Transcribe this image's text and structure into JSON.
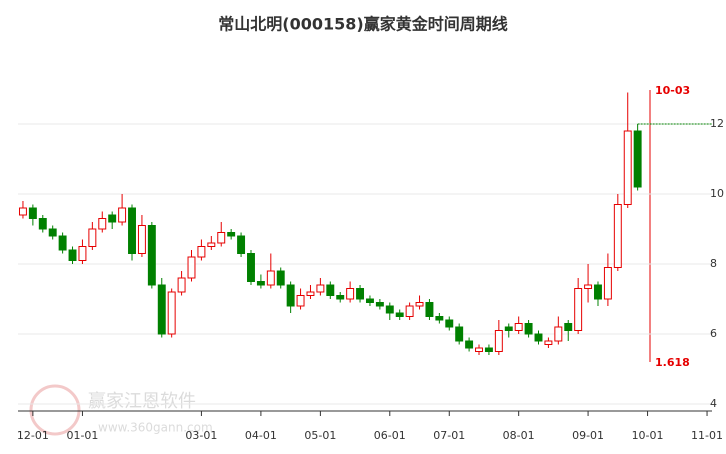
{
  "chart_data": {
    "type": "candlestick",
    "title": "常山北明(000158)赢家黄金时间周期线",
    "categories": [
      null,
      "12-01",
      null,
      null,
      null,
      null,
      "01-01",
      null,
      null,
      null,
      null,
      null,
      null,
      null,
      null,
      null,
      null,
      null,
      "03-01",
      null,
      null,
      null,
      null,
      null,
      "04-01",
      null,
      null,
      null,
      null,
      null,
      "05-01",
      null,
      null,
      null,
      null,
      null,
      null,
      "06-01",
      null,
      null,
      null,
      null,
      null,
      "07-01",
      null,
      null,
      null,
      null,
      null,
      null,
      "08-01",
      null,
      null,
      null,
      null,
      null,
      null,
      "09-01",
      null,
      null,
      null,
      null,
      null,
      "10-01",
      null,
      null,
      null,
      null,
      null,
      "11-01"
    ],
    "open": [
      9.4,
      9.6,
      9.3,
      9.0,
      8.8,
      8.4,
      8.1,
      8.5,
      9.0,
      9.4,
      9.2,
      9.6,
      8.3,
      9.1,
      7.4,
      6.0,
      7.2,
      7.6,
      8.2,
      8.5,
      8.6,
      8.9,
      8.8,
      8.3,
      7.5,
      7.4,
      7.8,
      7.4,
      6.8,
      7.1,
      7.2,
      7.4,
      7.1,
      7.0,
      7.3,
      7.0,
      6.9,
      6.8,
      6.6,
      6.5,
      6.8,
      6.9,
      6.5,
      6.4,
      6.2,
      5.8,
      5.5,
      5.6,
      5.5,
      6.2,
      6.1,
      6.3,
      6.0,
      5.7,
      5.8,
      6.3,
      6.1,
      7.3,
      7.4,
      7.0,
      7.9,
      9.7,
      11.8,
      null,
      null,
      null,
      null,
      null,
      null,
      null
    ],
    "high": [
      9.8,
      9.7,
      9.4,
      9.1,
      8.9,
      8.5,
      8.7,
      9.2,
      9.5,
      9.5,
      10.0,
      9.7,
      9.4,
      9.2,
      7.6,
      7.3,
      7.8,
      8.4,
      8.7,
      8.8,
      9.2,
      9.0,
      8.9,
      8.4,
      7.7,
      8.3,
      7.9,
      7.5,
      7.3,
      7.4,
      7.6,
      7.5,
      7.2,
      7.5,
      7.4,
      7.1,
      7.0,
      6.9,
      6.7,
      6.9,
      7.1,
      7.0,
      6.6,
      6.5,
      6.3,
      5.9,
      5.7,
      5.7,
      6.4,
      6.3,
      6.5,
      6.4,
      6.1,
      5.9,
      6.5,
      6.4,
      7.6,
      8.0,
      7.5,
      8.3,
      10.0,
      12.9,
      12.0,
      null,
      null,
      null,
      null,
      null,
      null,
      null
    ],
    "low": [
      9.3,
      9.1,
      8.9,
      8.7,
      8.3,
      8.0,
      8.0,
      8.4,
      8.9,
      9.0,
      9.1,
      8.1,
      8.2,
      7.3,
      5.9,
      5.9,
      7.1,
      7.5,
      8.1,
      8.4,
      8.5,
      8.7,
      8.2,
      7.4,
      7.3,
      7.3,
      7.3,
      6.6,
      6.7,
      7.0,
      7.1,
      7.0,
      6.9,
      6.9,
      6.9,
      6.8,
      6.7,
      6.4,
      6.4,
      6.4,
      6.7,
      6.4,
      6.3,
      6.1,
      5.7,
      5.5,
      5.4,
      5.4,
      5.4,
      5.9,
      6.0,
      5.9,
      5.7,
      5.6,
      5.7,
      5.8,
      6.0,
      6.9,
      6.8,
      6.8,
      7.8,
      9.6,
      10.1,
      null,
      null,
      null,
      null,
      null,
      null,
      null
    ],
    "close": [
      9.6,
      9.3,
      9.0,
      8.8,
      8.4,
      8.1,
      8.5,
      9.0,
      9.3,
      9.2,
      9.6,
      8.3,
      9.1,
      7.4,
      6.0,
      7.2,
      7.6,
      8.2,
      8.5,
      8.6,
      8.9,
      8.8,
      8.3,
      7.5,
      7.4,
      7.8,
      7.4,
      6.8,
      7.1,
      7.2,
      7.4,
      7.1,
      7.0,
      7.3,
      7.0,
      6.9,
      6.8,
      6.6,
      6.5,
      6.8,
      6.9,
      6.5,
      6.4,
      6.2,
      5.8,
      5.6,
      5.6,
      5.5,
      6.1,
      6.1,
      6.3,
      6.0,
      5.8,
      5.8,
      6.2,
      6.1,
      7.3,
      7.4,
      7.0,
      7.9,
      9.7,
      11.8,
      10.2,
      null,
      null,
      null,
      null,
      null,
      null,
      null
    ],
    "up_color": "#e60000",
    "down_color": "#008000",
    "ylim": [
      4,
      14
    ],
    "yticks": [
      4,
      6,
      8,
      10,
      12
    ],
    "grid": true,
    "level": 12,
    "level_color": "#008000",
    "cycle_label": "10-03",
    "ratio_label": "1.618",
    "watermark": "赢家江恩软件",
    "watermark_url": "www.360gann.com"
  }
}
